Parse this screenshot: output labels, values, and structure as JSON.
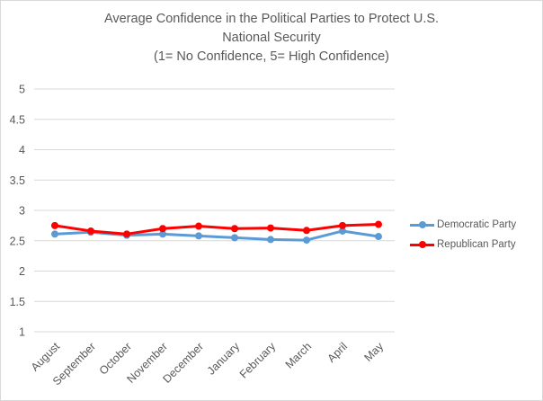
{
  "chart": {
    "title_lines": [
      "Average Confidence in the Political Parties to Protect U.S.",
      "National Security",
      "(1= No Confidence, 5= High Confidence)"
    ]
  },
  "chart_data": {
    "type": "line",
    "title": "Average Confidence in the Political Parties to Protect U.S. National Security (1= No Confidence, 5= High Confidence)",
    "categories": [
      "August",
      "September",
      "October",
      "November",
      "December",
      "January",
      "February",
      "March",
      "April",
      "May"
    ],
    "series": [
      {
        "name": "Democratic Party",
        "color": "#5B9BD5",
        "values": [
          2.61,
          2.64,
          2.59,
          2.61,
          2.58,
          2.55,
          2.52,
          2.51,
          2.66,
          2.57
        ]
      },
      {
        "name": "Republican Party",
        "color": "#FF0000",
        "values": [
          2.75,
          2.66,
          2.61,
          2.7,
          2.74,
          2.7,
          2.71,
          2.67,
          2.75,
          2.77
        ]
      }
    ],
    "y_ticks": [
      5,
      4.5,
      4,
      3.5,
      3,
      2.5,
      2,
      1.5,
      1
    ],
    "ylim": [
      1,
      5
    ],
    "grid": true,
    "legend_position": "right",
    "colors": {
      "gridline": "#d9d9d9",
      "axis_text": "#595959",
      "title_text": "#595959",
      "frame_border": "#d9d9d9",
      "background": "#ffffff"
    }
  }
}
